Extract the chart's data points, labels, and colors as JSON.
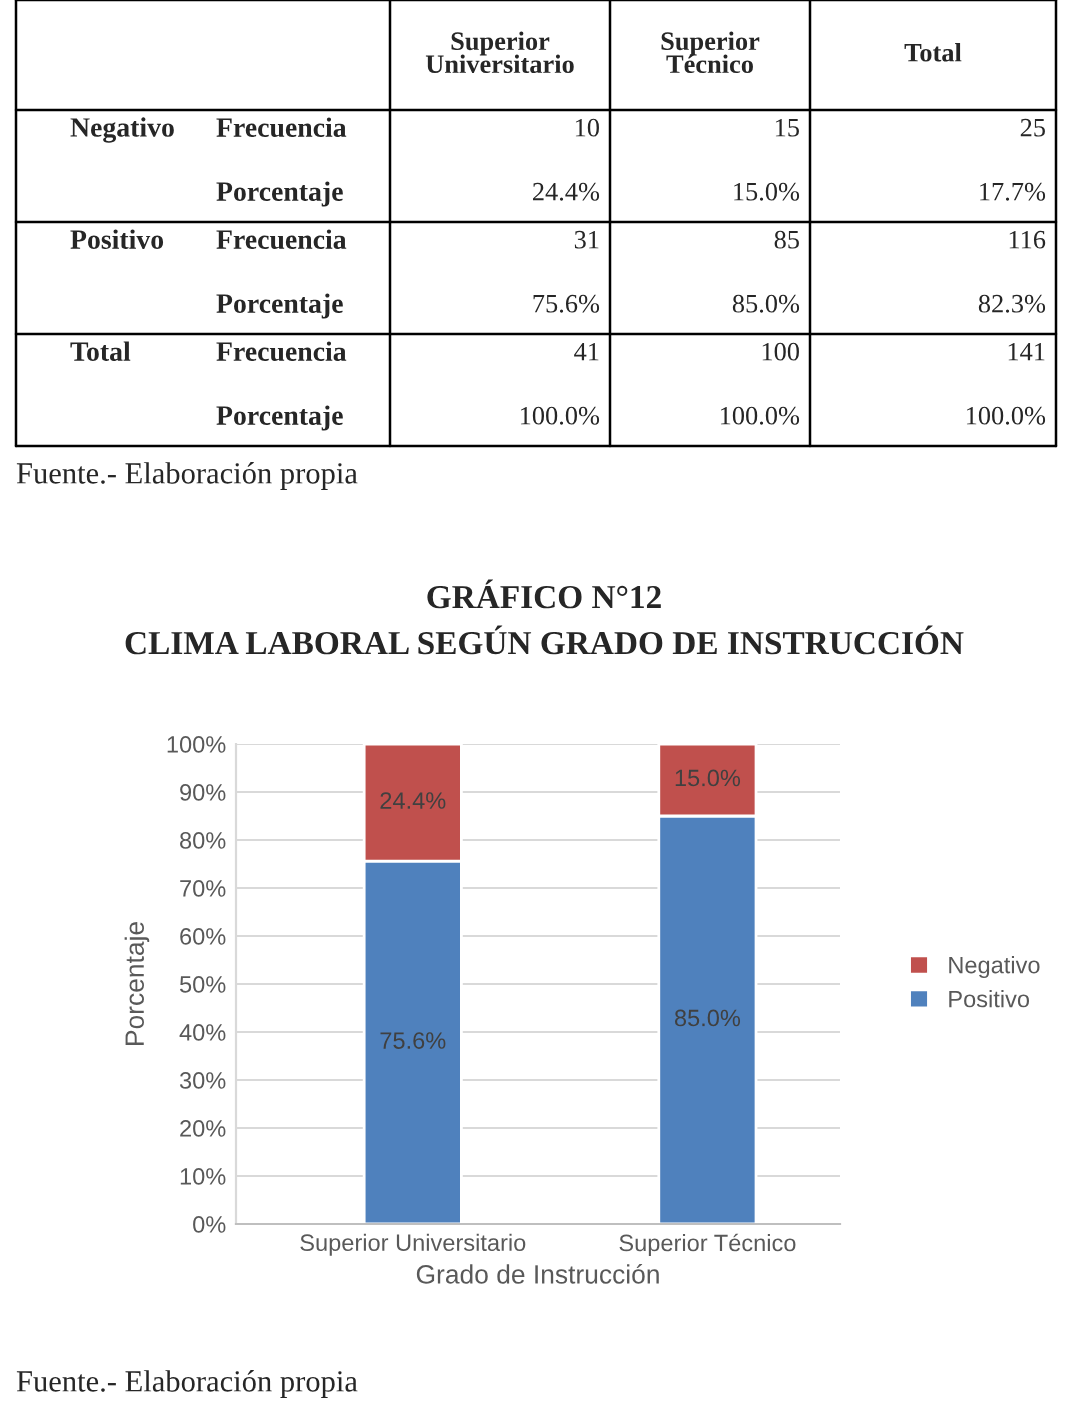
{
  "chart_data": [
    {
      "type": "other",
      "categories": [
        null,
        null,
        "Superior Universitario",
        "Superior Técnico",
        "Total"
      ],
      "cell_labels": [
        [
          "Negativo",
          "Frecuencia",
          "10",
          "15",
          "25"
        ],
        [
          null,
          "Porcentaje",
          "24.4%",
          "15.0%",
          "17.7%"
        ],
        [
          "Positivo",
          "Frecuencia",
          "31",
          "85",
          "116"
        ],
        [
          null,
          "Porcentaje",
          "75.6%",
          "85.0%",
          "82.3%"
        ],
        [
          "Total",
          "Frecuencia",
          "41",
          "100",
          "141"
        ],
        [
          null,
          "Porcentaje",
          "100.0%",
          "100.0%",
          "100.0%"
        ]
      ],
      "annotations": [
        "Fuente.- Elaboración propia"
      ]
    },
    {
      "type": "bar",
      "title": "GRÁFICO N°12",
      "subtitle": "CLIMA LABORAL SEGÚN GRADO DE INSTRUCCIÓN",
      "xlabel": "Grado de Instrucción",
      "ylabel": "Porcentaje",
      "stacked": true,
      "categories": [
        "Superior Universitario",
        "Superior Técnico"
      ],
      "series": [
        {
          "name": "Positivo",
          "color": "#4f81bd",
          "values": [
            75.6,
            85.0
          ],
          "value_labels": [
            "75.6%",
            "85.0%"
          ]
        },
        {
          "name": "Negativo",
          "color": "#c0504d",
          "values": [
            24.4,
            15.0
          ],
          "value_labels": [
            "24.4%",
            "15.0%"
          ]
        }
      ],
      "ylim": [
        0,
        100
      ],
      "yticks": [
        {
          "value": 0,
          "label": "0%"
        },
        {
          "value": 10,
          "label": "10%"
        },
        {
          "value": 20,
          "label": "20%"
        },
        {
          "value": 30,
          "label": "30%"
        },
        {
          "value": 40,
          "label": "40%"
        },
        {
          "value": 50,
          "label": "50%"
        },
        {
          "value": 60,
          "label": "60%"
        },
        {
          "value": 70,
          "label": "70%"
        },
        {
          "value": 80,
          "label": "80%"
        },
        {
          "value": 90,
          "label": "90%"
        },
        {
          "value": 100,
          "label": "100%"
        }
      ],
      "grid": "y",
      "legend": "right",
      "annotations": [
        "Fuente.- Elaboración propia"
      ]
    }
  ]
}
